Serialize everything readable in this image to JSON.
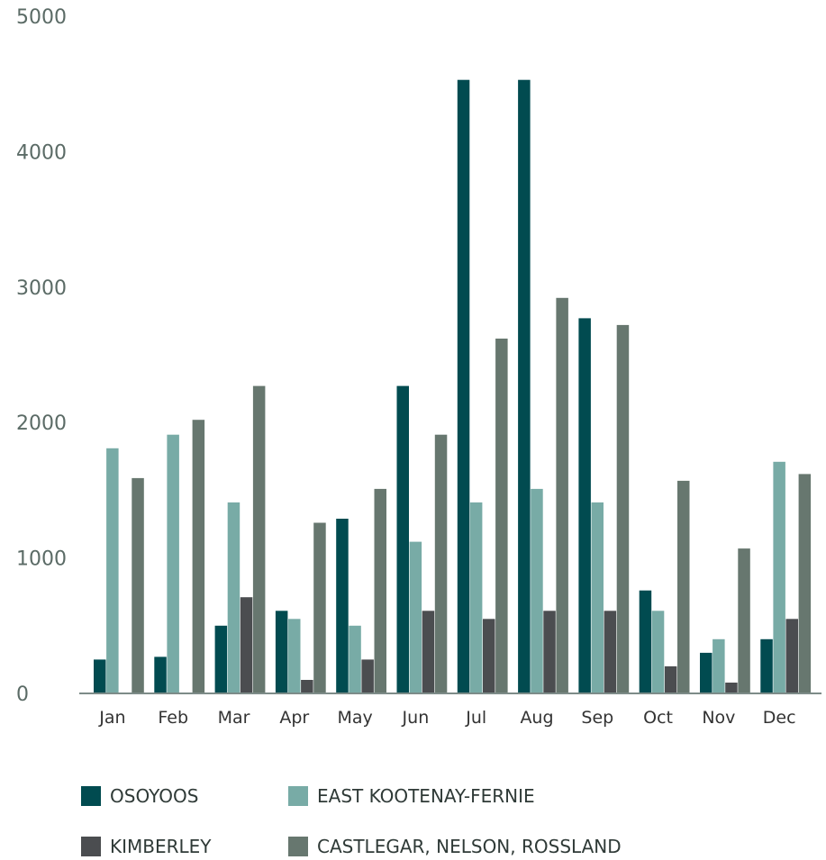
{
  "chart_data": {
    "type": "bar",
    "categories": [
      "Jan",
      "Feb",
      "Mar",
      "Apr",
      "May",
      "Jun",
      "Jul",
      "Aug",
      "Sep",
      "Oct",
      "Nov",
      "Dec"
    ],
    "series": [
      {
        "name": "OSOYOOS",
        "color": "#014b50",
        "values": [
          250,
          270,
          500,
          610,
          1290,
          2270,
          4530,
          4530,
          2770,
          760,
          300,
          400
        ]
      },
      {
        "name": "EAST KOOTENAY-FERNIE",
        "color": "#78aba6",
        "values": [
          1810,
          1910,
          1410,
          550,
          500,
          1120,
          1410,
          1510,
          1410,
          610,
          400,
          1710
        ]
      },
      {
        "name": "KIMBERLEY",
        "color": "#4b4d50",
        "values": [
          0,
          0,
          710,
          100,
          250,
          610,
          550,
          610,
          610,
          200,
          80,
          550
        ]
      },
      {
        "name": "CASTLEGAR, NELSON, ROSSLAND",
        "color": "#67776f",
        "values": [
          1590,
          2020,
          2270,
          1260,
          1510,
          1910,
          2620,
          2920,
          2720,
          1570,
          1070,
          1620
        ]
      }
    ],
    "yticks": [
      "0",
      "1000",
      "2000",
      "3000",
      "4000",
      "5000"
    ],
    "ylim": [
      0,
      5000
    ],
    "grid": false,
    "legend_position": "bottom"
  }
}
